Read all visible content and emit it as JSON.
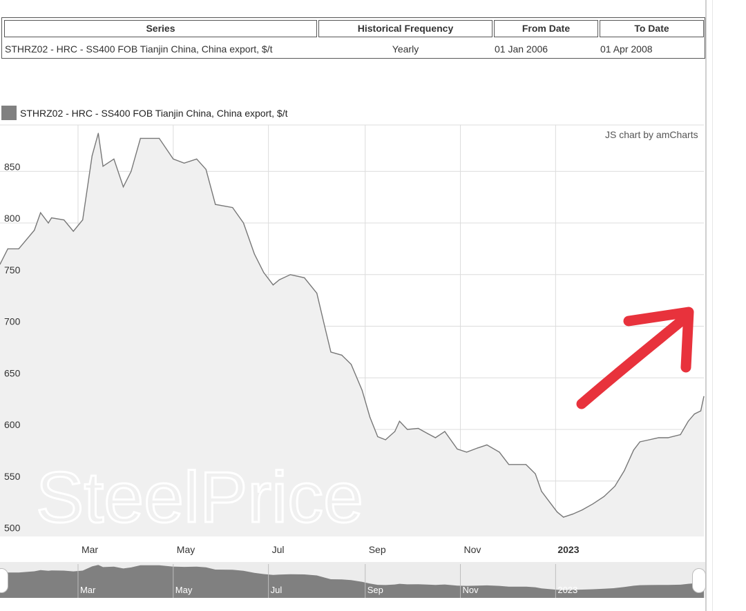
{
  "info_table": {
    "headers": [
      "Series",
      "Historical Frequency",
      "From Date",
      "To Date"
    ],
    "row": {
      "series": "STHRZ02 - HRC - SS400 FOB Tianjin China, China export, $/t",
      "frequency": "Yearly",
      "from_date": "01 Jan 2006",
      "to_date": "01 Apr 2008"
    }
  },
  "legend": {
    "label": "STHRZ02 - HRC - SS400 FOB Tianjin China, China export, $/t",
    "color": "#808080"
  },
  "credit": "JS chart by amCharts",
  "watermark": "SteelPrice",
  "colors": {
    "line": "#777777",
    "fill": "#f0f0f0",
    "grid": "#dcdcdc",
    "arrow": "#e8323c",
    "scrollbar_fill": "#808080",
    "scrollbar_bg": "#ececec"
  },
  "chart_data": {
    "type": "area",
    "title": "",
    "xlabel": "",
    "ylabel": "",
    "x_tick_labels": [
      "Mar",
      "May",
      "Jul",
      "Sep",
      "Nov",
      "2023"
    ],
    "y_tick_labels": [
      "500",
      "550",
      "600",
      "650",
      "700",
      "750",
      "800",
      "850"
    ],
    "ylim": [
      497,
      895
    ],
    "grid": true,
    "legend_position": "top-left",
    "series": [
      {
        "name": "STHRZ02 - HRC - SS400 FOB Tianjin China, China export, $/t",
        "points": [
          [
            "2022-01-10",
            760
          ],
          [
            "2022-01-15",
            775
          ],
          [
            "2022-01-22",
            775
          ],
          [
            "2022-02-01",
            793
          ],
          [
            "2022-02-05",
            810
          ],
          [
            "2022-02-10",
            800
          ],
          [
            "2022-02-12",
            805
          ],
          [
            "2022-02-20",
            803
          ],
          [
            "2022-02-26",
            792
          ],
          [
            "2022-03-04",
            803
          ],
          [
            "2022-03-10",
            865
          ],
          [
            "2022-03-14",
            887
          ],
          [
            "2022-03-17",
            855
          ],
          [
            "2022-03-24",
            862
          ],
          [
            "2022-03-30",
            835
          ],
          [
            "2022-04-04",
            850
          ],
          [
            "2022-04-10",
            882
          ],
          [
            "2022-04-22",
            882
          ],
          [
            "2022-05-01",
            862
          ],
          [
            "2022-05-08",
            858
          ],
          [
            "2022-05-16",
            862
          ],
          [
            "2022-05-22",
            852
          ],
          [
            "2022-05-28",
            818
          ],
          [
            "2022-06-08",
            815
          ],
          [
            "2022-06-15",
            800
          ],
          [
            "2022-06-22",
            770
          ],
          [
            "2022-06-28",
            752
          ],
          [
            "2022-07-04",
            740
          ],
          [
            "2022-07-08",
            745
          ],
          [
            "2022-07-15",
            750
          ],
          [
            "2022-07-24",
            747
          ],
          [
            "2022-08-01",
            732
          ],
          [
            "2022-08-06",
            700
          ],
          [
            "2022-08-10",
            675
          ],
          [
            "2022-08-17",
            672
          ],
          [
            "2022-08-23",
            663
          ],
          [
            "2022-08-30",
            638
          ],
          [
            "2022-09-04",
            612
          ],
          [
            "2022-09-09",
            593
          ],
          [
            "2022-09-14",
            590
          ],
          [
            "2022-09-20",
            598
          ],
          [
            "2022-09-23",
            608
          ],
          [
            "2022-09-28",
            600
          ],
          [
            "2022-10-05",
            601
          ],
          [
            "2022-10-11",
            596
          ],
          [
            "2022-10-16",
            592
          ],
          [
            "2022-10-22",
            598
          ],
          [
            "2022-10-30",
            581
          ],
          [
            "2022-11-05",
            578
          ],
          [
            "2022-11-12",
            582
          ],
          [
            "2022-11-18",
            585
          ],
          [
            "2022-11-26",
            578
          ],
          [
            "2022-12-02",
            566
          ],
          [
            "2022-12-13",
            566
          ],
          [
            "2022-12-19",
            557
          ],
          [
            "2022-12-23",
            540
          ],
          [
            "2022-12-28",
            530
          ],
          [
            "2023-01-02",
            520
          ],
          [
            "2023-01-06",
            515
          ],
          [
            "2023-01-12",
            518
          ],
          [
            "2023-01-18",
            522
          ],
          [
            "2023-01-25",
            528
          ],
          [
            "2023-02-01",
            535
          ],
          [
            "2023-02-08",
            545
          ],
          [
            "2023-02-14",
            560
          ],
          [
            "2023-02-20",
            580
          ],
          [
            "2023-02-24",
            588
          ],
          [
            "2023-03-02",
            590
          ],
          [
            "2023-03-08",
            592
          ],
          [
            "2023-03-14",
            592
          ],
          [
            "2023-03-22",
            595
          ],
          [
            "2023-03-27",
            608
          ],
          [
            "2023-03-31",
            615
          ],
          [
            "2023-04-04",
            618
          ],
          [
            "2023-04-06",
            632
          ]
        ]
      }
    ]
  }
}
